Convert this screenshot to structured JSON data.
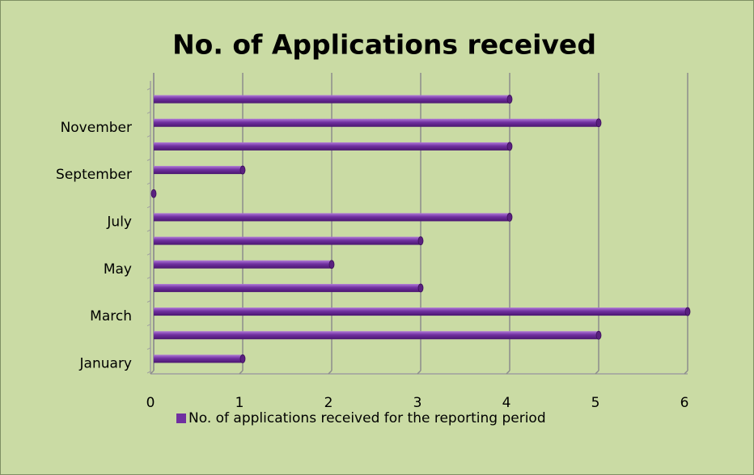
{
  "chart_data": {
    "type": "bar",
    "orientation": "horizontal",
    "title": "No. of Applications received",
    "categories": [
      "January",
      null,
      "March",
      null,
      "May",
      null,
      "July",
      null,
      "September",
      null,
      "November",
      null
    ],
    "series": [
      {
        "name": "No. of applications received for the reporting period",
        "color": "#7030a0",
        "values": [
          1,
          5,
          6,
          3,
          2,
          3,
          4,
          0,
          1,
          4,
          5,
          4
        ]
      }
    ],
    "xlim": [
      0,
      6
    ],
    "xticks": [
      0,
      1,
      2,
      3,
      4,
      5,
      6
    ],
    "grid": true,
    "legend": "bottom"
  }
}
